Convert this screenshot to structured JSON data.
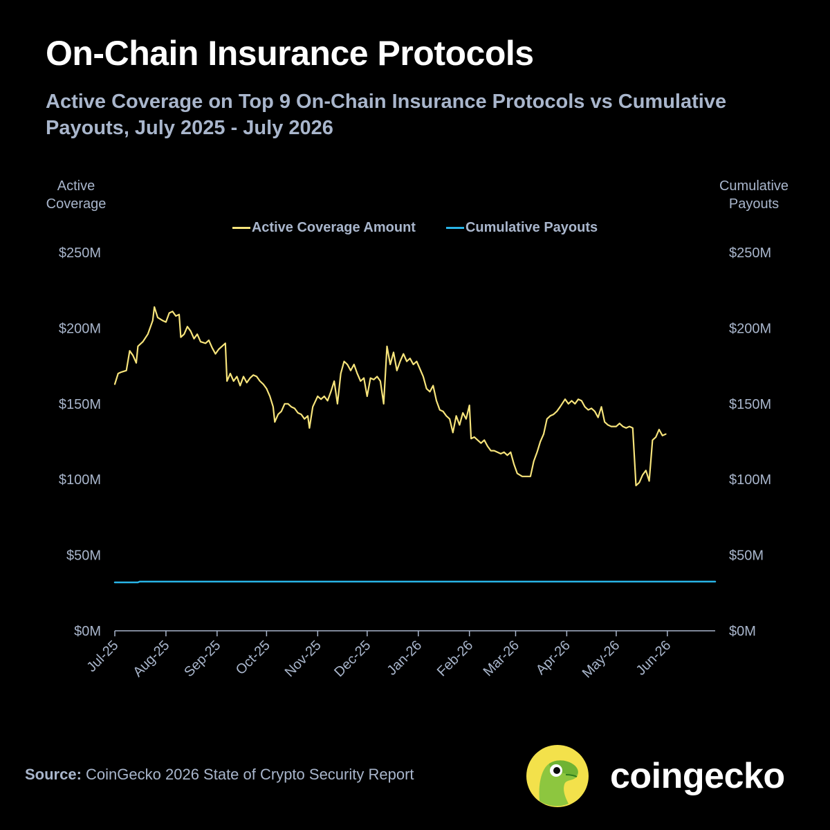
{
  "title": "On-Chain Insurance Protocols",
  "subtitle": "Active Coverage on Top 9 On-Chain Insurance Protocols vs Cumulative Payouts, July 2025 - July 2026",
  "left_axis_title": [
    "Active",
    "Coverage"
  ],
  "right_axis_title": [
    "Cumulative",
    "Payouts"
  ],
  "source_label": "Source:",
  "source_text": "CoinGecko 2026 State of Crypto Security Report",
  "brand": "coingecko",
  "colors": {
    "coverage": "#f7e47b",
    "payouts": "#29b5e8",
    "axis_text": "#a9b6cc",
    "background": "#000000"
  },
  "icons": {
    "logo": "coingecko-gecko-icon"
  },
  "chart_data": {
    "type": "line",
    "title": "On-Chain Insurance Protocols",
    "x_tick_labels": [
      "Jul-25",
      "Aug-25",
      "Sep-25",
      "Oct-25",
      "Nov-25",
      "Dec-25",
      "Jan-26",
      "Feb-26",
      "Mar-26",
      "Apr-26",
      "May-26",
      "Jun-26"
    ],
    "x_range": [
      "2025-07-01",
      "2026-06-30"
    ],
    "y_ticks": [
      0,
      50,
      100,
      150,
      200,
      250
    ],
    "y_tick_labels": [
      "$0M",
      "$50M",
      "$100M",
      "$150M",
      "$200M",
      "$250M"
    ],
    "y_range": [
      0,
      250
    ],
    "y_unit": "USD millions",
    "secondary_y_ticks": [
      0,
      50,
      100,
      150,
      200,
      250
    ],
    "secondary_y_tick_labels": [
      "$0M",
      "$50M",
      "$100M",
      "$150M",
      "$200M",
      "$250M"
    ],
    "legend_position": "top-center",
    "grid": false,
    "series": [
      {
        "name": "Active Coverage Amount",
        "axis": "left",
        "points": [
          [
            "2025-07-01",
            163
          ],
          [
            "2025-07-03",
            170
          ],
          [
            "2025-07-05",
            171
          ],
          [
            "2025-07-08",
            172
          ],
          [
            "2025-07-10",
            185
          ],
          [
            "2025-07-12",
            182
          ],
          [
            "2025-07-14",
            177
          ],
          [
            "2025-07-15",
            188
          ],
          [
            "2025-07-18",
            191
          ],
          [
            "2025-07-21",
            196
          ],
          [
            "2025-07-24",
            205
          ],
          [
            "2025-07-25",
            214
          ],
          [
            "2025-07-27",
            207
          ],
          [
            "2025-07-30",
            205
          ],
          [
            "2025-08-01",
            204
          ],
          [
            "2025-08-03",
            210
          ],
          [
            "2025-08-05",
            211
          ],
          [
            "2025-08-07",
            208
          ],
          [
            "2025-08-09",
            209
          ],
          [
            "2025-08-10",
            194
          ],
          [
            "2025-08-12",
            196
          ],
          [
            "2025-08-14",
            201
          ],
          [
            "2025-08-16",
            198
          ],
          [
            "2025-08-18",
            193
          ],
          [
            "2025-08-20",
            196
          ],
          [
            "2025-08-22",
            191
          ],
          [
            "2025-08-25",
            190
          ],
          [
            "2025-08-27",
            192
          ],
          [
            "2025-08-29",
            187
          ],
          [
            "2025-08-31",
            183
          ],
          [
            "2025-09-02",
            186
          ],
          [
            "2025-09-04",
            188
          ],
          [
            "2025-09-06",
            190
          ],
          [
            "2025-09-07",
            165
          ],
          [
            "2025-09-09",
            170
          ],
          [
            "2025-09-11",
            165
          ],
          [
            "2025-09-13",
            168
          ],
          [
            "2025-09-15",
            162
          ],
          [
            "2025-09-17",
            168
          ],
          [
            "2025-09-19",
            164
          ],
          [
            "2025-09-21",
            167
          ],
          [
            "2025-09-23",
            169
          ],
          [
            "2025-09-25",
            168
          ],
          [
            "2025-09-27",
            165
          ],
          [
            "2025-09-29",
            163
          ],
          [
            "2025-10-01",
            160
          ],
          [
            "2025-10-03",
            155
          ],
          [
            "2025-10-05",
            148
          ],
          [
            "2025-10-06",
            138
          ],
          [
            "2025-10-08",
            143
          ],
          [
            "2025-10-10",
            145
          ],
          [
            "2025-10-12",
            150
          ],
          [
            "2025-10-14",
            150
          ],
          [
            "2025-10-16",
            148
          ],
          [
            "2025-10-18",
            147
          ],
          [
            "2025-10-20",
            144
          ],
          [
            "2025-10-22",
            143
          ],
          [
            "2025-10-24",
            140
          ],
          [
            "2025-10-26",
            142
          ],
          [
            "2025-10-27",
            134
          ],
          [
            "2025-10-29",
            148
          ],
          [
            "2025-11-01",
            155
          ],
          [
            "2025-11-03",
            153
          ],
          [
            "2025-11-05",
            155
          ],
          [
            "2025-11-07",
            152
          ],
          [
            "2025-11-09",
            158
          ],
          [
            "2025-11-11",
            165
          ],
          [
            "2025-11-13",
            150
          ],
          [
            "2025-11-15",
            170
          ],
          [
            "2025-11-17",
            178
          ],
          [
            "2025-11-19",
            176
          ],
          [
            "2025-11-21",
            172
          ],
          [
            "2025-11-23",
            176
          ],
          [
            "2025-11-25",
            170
          ],
          [
            "2025-11-27",
            165
          ],
          [
            "2025-11-29",
            167
          ],
          [
            "2025-12-01",
            155
          ],
          [
            "2025-12-03",
            167
          ],
          [
            "2025-12-05",
            166
          ],
          [
            "2025-12-07",
            168
          ],
          [
            "2025-12-09",
            165
          ],
          [
            "2025-12-11",
            150
          ],
          [
            "2025-12-13",
            188
          ],
          [
            "2025-12-15",
            176
          ],
          [
            "2025-12-17",
            184
          ],
          [
            "2025-12-19",
            172
          ],
          [
            "2025-12-21",
            178
          ],
          [
            "2025-12-23",
            183
          ],
          [
            "2025-12-25",
            178
          ],
          [
            "2025-12-27",
            180
          ],
          [
            "2025-12-29",
            176
          ],
          [
            "2025-12-31",
            178
          ],
          [
            "2026-01-02",
            173
          ],
          [
            "2026-01-04",
            168
          ],
          [
            "2026-01-06",
            160
          ],
          [
            "2026-01-08",
            158
          ],
          [
            "2026-01-10",
            162
          ],
          [
            "2026-01-12",
            152
          ],
          [
            "2026-01-14",
            146
          ],
          [
            "2026-01-16",
            145
          ],
          [
            "2026-01-18",
            142
          ],
          [
            "2026-01-20",
            140
          ],
          [
            "2026-01-22",
            131
          ],
          [
            "2026-01-24",
            142
          ],
          [
            "2026-01-26",
            136
          ],
          [
            "2026-01-28",
            144
          ],
          [
            "2026-01-30",
            140
          ],
          [
            "2026-02-01",
            149
          ],
          [
            "2026-02-02",
            127
          ],
          [
            "2026-02-04",
            128
          ],
          [
            "2026-02-06",
            126
          ],
          [
            "2026-02-08",
            124
          ],
          [
            "2026-02-10",
            126
          ],
          [
            "2026-02-12",
            122
          ],
          [
            "2026-02-14",
            119
          ],
          [
            "2026-02-16",
            119
          ],
          [
            "2026-02-18",
            118
          ],
          [
            "2026-02-20",
            117
          ],
          [
            "2026-02-22",
            118
          ],
          [
            "2026-02-24",
            116
          ],
          [
            "2026-02-26",
            118
          ],
          [
            "2026-02-28",
            110
          ],
          [
            "2026-03-02",
            104
          ],
          [
            "2026-03-05",
            102
          ],
          [
            "2026-03-10",
            102
          ],
          [
            "2026-03-12",
            112
          ],
          [
            "2026-03-14",
            118
          ],
          [
            "2026-03-16",
            125
          ],
          [
            "2026-03-18",
            130
          ],
          [
            "2026-03-20",
            140
          ],
          [
            "2026-03-22",
            142
          ],
          [
            "2026-03-24",
            143
          ],
          [
            "2026-03-26",
            145
          ],
          [
            "2026-03-28",
            148
          ],
          [
            "2026-03-31",
            153
          ],
          [
            "2026-04-02",
            150
          ],
          [
            "2026-04-04",
            152
          ],
          [
            "2026-04-06",
            150
          ],
          [
            "2026-04-08",
            153
          ],
          [
            "2026-04-10",
            152
          ],
          [
            "2026-04-12",
            148
          ],
          [
            "2026-04-14",
            146
          ],
          [
            "2026-04-16",
            147
          ],
          [
            "2026-04-18",
            145
          ],
          [
            "2026-04-20",
            141
          ],
          [
            "2026-04-22",
            148
          ],
          [
            "2026-04-24",
            138
          ],
          [
            "2026-04-26",
            136
          ],
          [
            "2026-04-28",
            135
          ],
          [
            "2026-05-01",
            135
          ],
          [
            "2026-05-03",
            137
          ],
          [
            "2026-05-05",
            135
          ],
          [
            "2026-05-07",
            134
          ],
          [
            "2026-05-09",
            135
          ],
          [
            "2026-05-11",
            134
          ],
          [
            "2026-05-13",
            96
          ],
          [
            "2026-05-15",
            98
          ],
          [
            "2026-05-17",
            103
          ],
          [
            "2026-05-19",
            106
          ],
          [
            "2026-05-21",
            99
          ],
          [
            "2026-05-23",
            126
          ],
          [
            "2026-05-25",
            128
          ],
          [
            "2026-05-27",
            133
          ],
          [
            "2026-05-29",
            129
          ],
          [
            "2026-05-31",
            130
          ]
        ]
      },
      {
        "name": "Cumulative Payouts",
        "axis": "right",
        "points": [
          [
            "2025-07-01",
            32
          ],
          [
            "2025-07-15",
            32
          ],
          [
            "2025-07-16",
            32.5
          ],
          [
            "2026-06-30",
            32.5
          ]
        ]
      }
    ]
  }
}
